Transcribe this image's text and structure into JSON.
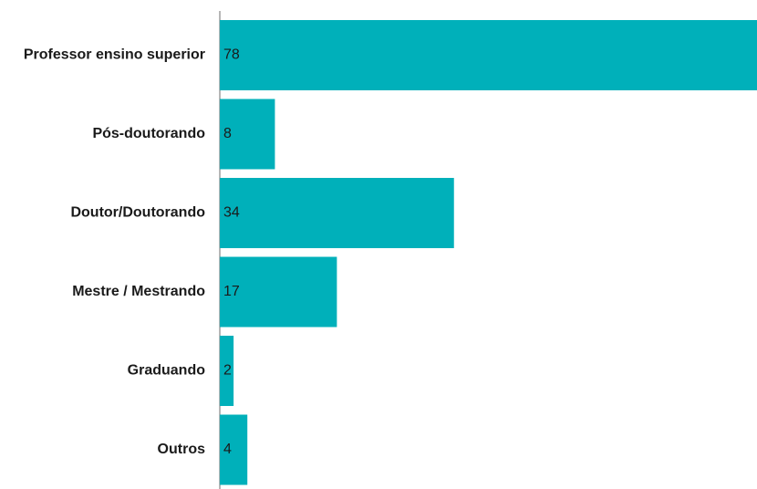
{
  "chart_data": {
    "type": "bar",
    "orientation": "horizontal",
    "categories": [
      "Professor ensino superior",
      "Pós-doutorando",
      "Doutor/Doutorando",
      "Mestre / Mestrando",
      "Graduando",
      "Outros"
    ],
    "values": [
      78,
      8,
      34,
      17,
      2,
      4
    ],
    "title": "",
    "xlabel": "",
    "ylabel": "",
    "xlim": [
      0,
      78
    ],
    "grid": false,
    "legend": "none",
    "bar_color": "#00B0BA",
    "axis_color": "#9e9e9e",
    "text_color": "#1a1a1a"
  }
}
